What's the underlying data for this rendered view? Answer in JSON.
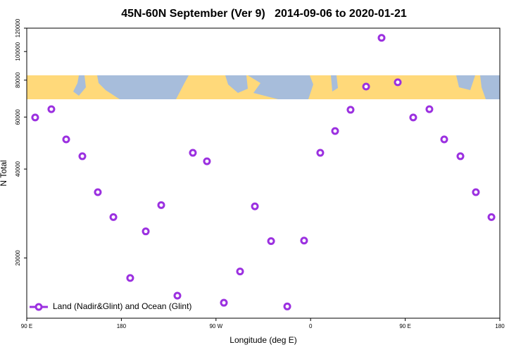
{
  "chart_data": {
    "type": "scatter",
    "title": "45N-60N September (Ver 9)   2014-09-06 to 2020-01-21",
    "xlabel": "Longitude (deg E)",
    "ylabel": "N Total",
    "log_y": true,
    "xlim": [
      90,
      540
    ],
    "xticks": [
      {
        "value": 90,
        "label": "90 E"
      },
      {
        "value": 180,
        "label": "180"
      },
      {
        "value": 270,
        "label": "90 W"
      },
      {
        "value": 360,
        "label": "0"
      },
      {
        "value": 450,
        "label": "90 E"
      },
      {
        "value": 540,
        "label": "180"
      }
    ],
    "ylim": [
      12500,
      120000
    ],
    "yticks": [
      20000,
      40000,
      60000,
      80000,
      100000,
      120000
    ],
    "legend": "bottom-left",
    "series": [
      {
        "name": "Land (Nadir&Glint) and Ocean (Glint)",
        "color": "#9b30e0",
        "x": [
          98,
          113.4,
          127.5,
          142.9,
          157.6,
          172.4,
          188.4,
          203.2,
          217.9,
          233.3,
          248,
          261.4,
          277.5,
          292.9,
          307,
          322.4,
          337.8,
          353.8,
          369.2,
          383.3,
          398,
          412.8,
          427.5,
          442.9,
          457.6,
          473,
          487.1,
          502.5,
          517.2,
          532
        ],
        "values": [
          59800,
          63800,
          50400,
          44200,
          33400,
          27500,
          17100,
          24600,
          30200,
          14900,
          45400,
          42500,
          14100,
          18000,
          29900,
          22800,
          13700,
          22900,
          45400,
          53800,
          63500,
          76100,
          111300,
          78700,
          59800,
          63800,
          50400,
          44200,
          33400,
          27500
        ]
      }
    ]
  }
}
